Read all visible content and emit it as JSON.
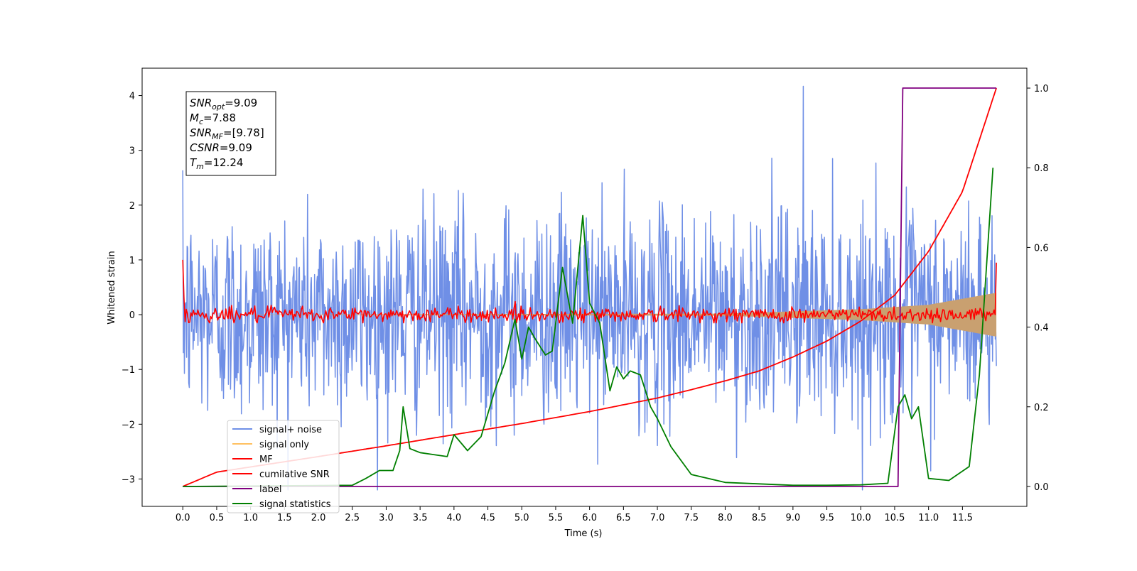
{
  "chart_data": {
    "type": "line",
    "xlabel": "Time (s)",
    "ylabel": "Whitened strain",
    "xlim": [
      -0.6,
      12.45
    ],
    "ylim_left": [
      -3.5,
      4.5
    ],
    "ylim_right": [
      -0.05,
      1.05
    ],
    "x_ticks": [
      "0.0",
      "0.5",
      "1.0",
      "1.5",
      "2.0",
      "2.5",
      "3.0",
      "3.5",
      "4.0",
      "4.5",
      "5.0",
      "5.5",
      "6.0",
      "6.5",
      "7.0",
      "7.5",
      "8.0",
      "8.5",
      "9.0",
      "9.5",
      "10.0",
      "10.5",
      "11.0",
      "11.5"
    ],
    "left_ticks": [
      4,
      3,
      2,
      1,
      0,
      -1,
      -2,
      -3
    ],
    "left_tick_labels": [
      "4",
      "3",
      "2",
      "1",
      "0",
      "−1",
      "−2",
      "−3"
    ],
    "right_ticks": [
      1.0,
      0.8,
      0.6,
      0.4,
      0.2,
      0.0
    ],
    "right_tick_labels": [
      "1.0",
      "0.8",
      "0.6",
      "0.4",
      "0.2",
      "0.0"
    ],
    "grid": false,
    "legend_position": "lower-left",
    "colors": {
      "signal_noise": "#6f8fe6",
      "signal_only": "#c9a070",
      "signal_only_legend": "#ffc060",
      "mf": "#ff0000",
      "cumulative": "#ff0000",
      "label": "#800080",
      "stats": "#007f00"
    },
    "series": [
      {
        "name": "signal+ noise",
        "axis": "left",
        "style": "dense noise band",
        "x_range": [
          0.0,
          12.0
        ],
        "approx_range": [
          -3.2,
          4.2
        ],
        "peak": {
          "x": 9.15,
          "y": 4.17
        }
      },
      {
        "name": "signal only",
        "axis": "left",
        "style": "chirp envelope growing toward end",
        "envelope_amplitude": [
          [
            0.0,
            0.0
          ],
          [
            8.0,
            0.02
          ],
          [
            10.0,
            0.1
          ],
          [
            11.0,
            0.18
          ],
          [
            12.0,
            0.4
          ]
        ]
      },
      {
        "name": "MF",
        "axis": "left",
        "style": "noisy line around zero",
        "start_value": 1.0,
        "end_value": 0.95,
        "noise_amplitude": 0.1
      },
      {
        "name": "cumilative SNR",
        "axis": "right",
        "x": [
          0.0,
          0.5,
          1,
          2,
          3,
          4,
          5,
          6,
          7,
          7.5,
          8,
          8.5,
          9,
          9.5,
          10,
          10.5,
          11,
          11.5,
          12.0
        ],
        "y": [
          0.0,
          0.036,
          0.049,
          0.075,
          0.102,
          0.13,
          0.158,
          0.188,
          0.222,
          0.243,
          0.265,
          0.29,
          0.325,
          0.365,
          0.415,
          0.48,
          0.59,
          0.74,
          1.0
        ]
      },
      {
        "name": "label",
        "axis": "right",
        "x": [
          0.0,
          10.55,
          10.62,
          12.0
        ],
        "y": [
          0.0,
          0.0,
          1.0,
          1.0
        ]
      },
      {
        "name": "signal statistics",
        "axis": "right",
        "x": [
          0.0,
          2.5,
          2.7,
          2.9,
          3.1,
          3.2,
          3.25,
          3.35,
          3.5,
          3.7,
          3.9,
          4.0,
          4.2,
          4.4,
          4.6,
          4.75,
          4.9,
          5.0,
          5.1,
          5.2,
          5.35,
          5.45,
          5.6,
          5.75,
          5.9,
          6.0,
          6.15,
          6.3,
          6.4,
          6.5,
          6.6,
          6.75,
          6.9,
          7.0,
          7.2,
          7.5,
          8.0,
          9.0,
          9.5,
          10.0,
          10.4,
          10.55,
          10.65,
          10.75,
          10.85,
          11.0,
          11.3,
          11.6,
          11.75,
          11.95
        ],
        "y": [
          0.0,
          0.003,
          0.02,
          0.04,
          0.04,
          0.09,
          0.2,
          0.095,
          0.085,
          0.08,
          0.075,
          0.13,
          0.09,
          0.125,
          0.24,
          0.31,
          0.42,
          0.32,
          0.4,
          0.37,
          0.33,
          0.34,
          0.55,
          0.41,
          0.68,
          0.46,
          0.41,
          0.24,
          0.3,
          0.27,
          0.29,
          0.28,
          0.2,
          0.17,
          0.1,
          0.03,
          0.01,
          0.003,
          0.003,
          0.004,
          0.008,
          0.2,
          0.23,
          0.17,
          0.2,
          0.02,
          0.015,
          0.05,
          0.28,
          0.8
        ]
      }
    ],
    "legend": [
      "signal+ noise",
      "signal only",
      "MF",
      "cumilative SNR",
      "label",
      "signal statistics"
    ],
    "info_box": {
      "lines": [
        {
          "name": "SNR",
          "sub": "opt",
          "value": "=9.09"
        },
        {
          "name": "M",
          "sub": "c",
          "value": "=7.88"
        },
        {
          "name": "SNR",
          "sub": "MF",
          "value": "=[9.78]"
        },
        {
          "name": "CSNR",
          "sub": "",
          "value": "=9.09"
        },
        {
          "name": "T",
          "sub": "m",
          "value": "=12.24"
        }
      ]
    }
  }
}
